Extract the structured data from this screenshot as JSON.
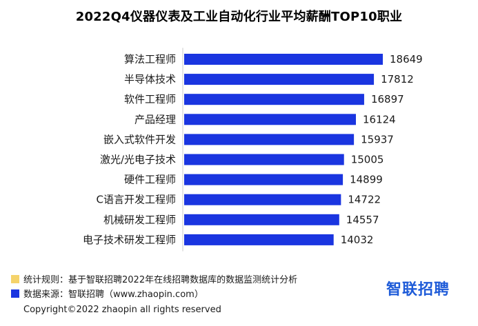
{
  "title": "2022Q4仪器仪表及工业自动化行业平均薪酬TOP10职业",
  "chart_data": {
    "type": "bar",
    "orientation": "horizontal",
    "title": "2022Q4仪器仪表及工业自动化行业平均薪酬TOP10职业",
    "categories": [
      "算法工程师",
      "半导体技术",
      "软件工程师",
      "产品经理",
      "嵌入式软件开发",
      "激光/光电子技术",
      "硬件工程师",
      "C语言开发工程师",
      "机械研发工程师",
      "电子技术研发工程师"
    ],
    "values": [
      18649,
      17812,
      16897,
      16124,
      15937,
      15005,
      14899,
      14722,
      14557,
      14032
    ],
    "value_labels": [
      "18649",
      "17812",
      "16897",
      "16124",
      "15937",
      "15005",
      "14899",
      "14722",
      "14557",
      "14032"
    ],
    "bar_color": "#1a35e0",
    "grid": false,
    "legend": "none"
  },
  "footer": {
    "rule_text": "统计规则：基于智联招聘2022年在线招聘数据库的数据监测统计分析",
    "rule_color": "#f5d36b",
    "source_text": "数据来源：智联招聘（www.zhaopin.com）",
    "source_color": "#1a35e0",
    "copyright": "Copyright©2022 zhaopin all rights reserved",
    "logo_text": "智联招聘"
  }
}
